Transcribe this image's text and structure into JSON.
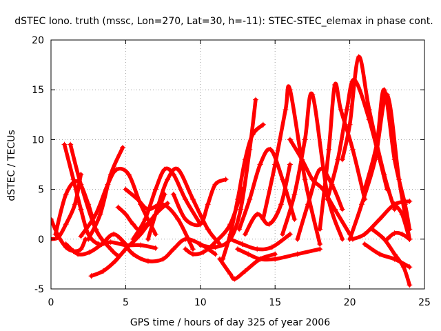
{
  "chart_data": {
    "type": "line",
    "title": "dSTEC Iono. truth (mssc, Lon=270, Lat=30, h=-11): STEC-STEC_elemax in phase cont.",
    "xlabel": "GPS time / hours of day 325 of year 2006",
    "ylabel": "dSTEC  / TECUs",
    "xlim": [
      0,
      25
    ],
    "ylim": [
      -5,
      20
    ],
    "xticks": [
      "0",
      "5",
      "10",
      "15",
      "20",
      "25"
    ],
    "yticks": [
      "-5",
      "0",
      "5",
      "10",
      "15",
      "20"
    ],
    "grid": true,
    "legend": "none",
    "color": "#ff0000",
    "marker": "plus",
    "series": [
      {
        "x": [
          0,
          0.5,
          1.0,
          1.5,
          2.0,
          2.3
        ],
        "y": [
          2.0,
          0.3,
          -0.8,
          -1.2,
          -1.0,
          0.0
        ]
      },
      {
        "x": [
          0,
          0.5,
          1.0,
          1.6,
          2.0
        ],
        "y": [
          0.0,
          0.2,
          1.5,
          3.5,
          6.5
        ]
      },
      {
        "x": [
          0.9,
          1.5,
          2.0,
          2.5,
          3.2,
          4.0,
          5.0,
          6.0,
          7.0
        ],
        "y": [
          9.5,
          6.0,
          3.0,
          0.5,
          -0.5,
          -0.3,
          -0.6,
          -0.6,
          -0.9
        ]
      },
      {
        "x": [
          1.3,
          2.0,
          3.0,
          4.0,
          4.5
        ],
        "y": [
          9.5,
          5.5,
          1.0,
          -1.0,
          -1.7
        ]
      },
      {
        "x": [
          0.3,
          1.0,
          1.8,
          2.5,
          3.0,
          3.5
        ],
        "y": [
          0.5,
          4.5,
          5.8,
          3.5,
          1.0,
          -0.2
        ]
      },
      {
        "x": [
          1.0,
          1.8,
          2.6,
          3.4,
          4.2,
          5.0
        ],
        "y": [
          -0.5,
          -1.5,
          -1.3,
          -0.5,
          0.5,
          -0.5
        ]
      },
      {
        "x": [
          2.7,
          3.5,
          4.3,
          5.0,
          6.0,
          7.0,
          7.8
        ],
        "y": [
          -3.7,
          -3.2,
          -2.2,
          -1.0,
          0.5,
          2.5,
          3.6
        ]
      },
      {
        "x": [
          2.0,
          3.0,
          3.8,
          4.4,
          5.2,
          6.0,
          7.0
        ],
        "y": [
          0.3,
          2.5,
          5.5,
          7.0,
          6.5,
          3.5,
          0.5
        ]
      },
      {
        "x": [
          2.5,
          3.3,
          4.0,
          4.8
        ],
        "y": [
          0.0,
          2.5,
          6.5,
          9.2
        ]
      },
      {
        "x": [
          4.5,
          5.0,
          5.5,
          6.0,
          7.0,
          7.6
        ],
        "y": [
          3.2,
          2.5,
          1.5,
          1.0,
          2.5,
          4.5
        ]
      },
      {
        "x": [
          5.0,
          5.8,
          6.5,
          7.5,
          8.5,
          9.5
        ],
        "y": [
          5.0,
          4.0,
          3.0,
          3.5,
          2.0,
          -1.0
        ]
      },
      {
        "x": [
          4.8,
          5.5,
          6.5,
          7.5,
          8.2,
          9.0,
          10.0,
          11.0
        ],
        "y": [
          -0.3,
          -1.5,
          -2.2,
          -2.0,
          -1.0,
          0.0,
          -0.5,
          -1.5
        ]
      },
      {
        "x": [
          5.5,
          6.3,
          7.0,
          7.6,
          8.2,
          9.0,
          10.0
        ],
        "y": [
          0.0,
          2.0,
          5.0,
          7.0,
          6.5,
          4.0,
          1.5
        ]
      },
      {
        "x": [
          6.5,
          7.2,
          7.8,
          8.5,
          9.5,
          10.5,
          11.3
        ],
        "y": [
          0.0,
          3.5,
          6.0,
          7.0,
          4.0,
          1.0,
          -0.5
        ]
      },
      {
        "x": [
          8.2,
          9.0,
          10.0,
          10.5,
          11.0,
          11.7
        ],
        "y": [
          4.5,
          2.0,
          1.5,
          3.5,
          5.5,
          6.0
        ]
      },
      {
        "x": [
          9.0,
          9.5,
          10.2,
          11.0,
          12.0,
          12.8
        ],
        "y": [
          -1.0,
          -1.5,
          -1.3,
          -0.3,
          1.5,
          5.0
        ]
      },
      {
        "x": [
          10.0,
          11.0,
          12.0,
          12.7,
          13.3,
          13.7
        ],
        "y": [
          -0.6,
          -0.8,
          0.0,
          3.0,
          9.0,
          14.0
        ]
      },
      {
        "x": [
          11.3,
          12.0,
          12.3,
          13.0,
          14.0,
          15.0
        ],
        "y": [
          -2.0,
          -3.5,
          -4.0,
          -3.2,
          -2.0,
          -1.5
        ]
      },
      {
        "x": [
          11.5,
          12.0,
          12.5,
          13.0,
          13.5,
          14.2
        ],
        "y": [
          -2.0,
          0.5,
          4.0,
          8.0,
          10.5,
          11.5
        ]
      },
      {
        "x": [
          12.0,
          12.8,
          13.8,
          14.8,
          16.0
        ],
        "y": [
          0.0,
          -0.5,
          -1.0,
          -0.8,
          0.5
        ]
      },
      {
        "x": [
          12.5,
          13.2,
          14.0,
          15.0,
          16.5,
          18.0
        ],
        "y": [
          -1.0,
          -1.5,
          -2.0,
          -2.0,
          -1.5,
          -1.0
        ]
      },
      {
        "x": [
          12.6,
          13.3,
          14.0,
          14.7,
          15.5,
          16.3
        ],
        "y": [
          1.0,
          4.0,
          7.5,
          9.0,
          6.0,
          2.0
        ]
      },
      {
        "x": [
          13.0,
          13.8,
          14.6,
          15.4,
          16.0
        ],
        "y": [
          0.5,
          2.5,
          1.5,
          3.5,
          7.5
        ]
      },
      {
        "x": [
          14.2,
          15.0,
          15.7,
          16.0,
          17.0,
          18.0
        ],
        "y": [
          2.0,
          7.5,
          13.0,
          15.0,
          6.0,
          -0.5
        ]
      },
      {
        "x": [
          15.5,
          16.3,
          17.0,
          17.5,
          18.5,
          19.5
        ],
        "y": [
          0.5,
          4.5,
          10.0,
          14.5,
          4.5,
          0.0
        ]
      },
      {
        "x": [
          16.0,
          16.8,
          17.5,
          18.2,
          19.0,
          20.0
        ],
        "y": [
          10.0,
          8.0,
          6.0,
          5.0,
          3.0,
          0.5
        ]
      },
      {
        "x": [
          16.5,
          17.2,
          18.0,
          18.8,
          19.5
        ],
        "y": [
          0.0,
          3.5,
          7.0,
          5.5,
          3.0
        ]
      },
      {
        "x": [
          18.0,
          18.6,
          19.0,
          19.4,
          20.2,
          21.0
        ],
        "y": [
          1.0,
          9.0,
          15.5,
          13.0,
          9.0,
          4.0
        ]
      },
      {
        "x": [
          18.5,
          19.2,
          19.8,
          20.3,
          21.3,
          22.5
        ],
        "y": [
          4.0,
          8.0,
          13.0,
          16.0,
          12.0,
          5.0
        ]
      },
      {
        "x": [
          19.5,
          20.0,
          20.6,
          21.3,
          22.3,
          23.0
        ],
        "y": [
          8.0,
          11.5,
          18.3,
          13.0,
          6.5,
          3.0
        ]
      },
      {
        "x": [
          20.0,
          20.8,
          21.7,
          22.5,
          23.3,
          24.0
        ],
        "y": [
          0.0,
          3.5,
          8.0,
          14.5,
          6.0,
          0.0
        ]
      },
      {
        "x": [
          21.0,
          21.8,
          22.3,
          23.0,
          23.7,
          24.0
        ],
        "y": [
          5.0,
          9.5,
          15.0,
          8.0,
          3.5,
          1.0
        ]
      },
      {
        "x": [
          20.2,
          21.0,
          22.0,
          23.0,
          24.0
        ],
        "y": [
          0.0,
          0.5,
          2.0,
          3.5,
          3.8
        ]
      },
      {
        "x": [
          21.5,
          22.3,
          23.0,
          23.6,
          24.0
        ],
        "y": [
          1.0,
          0.0,
          -1.5,
          -2.8,
          -4.6
        ]
      },
      {
        "x": [
          21.0,
          22.0,
          23.0,
          24.0
        ],
        "y": [
          -0.5,
          -1.5,
          -2.0,
          -2.8
        ]
      },
      {
        "x": [
          22.5,
          23.0,
          23.5,
          24.0
        ],
        "y": [
          0.0,
          0.6,
          0.5,
          0.0
        ]
      },
      {
        "x": [
          23.0,
          23.5,
          24.0
        ],
        "y": [
          3.5,
          2.5,
          0.0
        ]
      }
    ]
  }
}
